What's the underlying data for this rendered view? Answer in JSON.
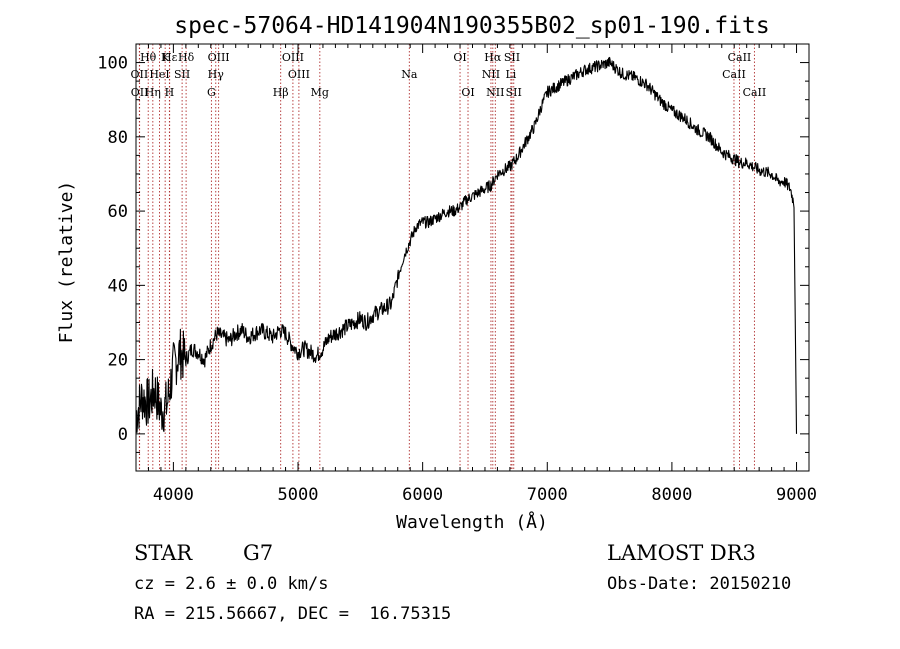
{
  "chart_data": {
    "type": "line",
    "title": "spec-57064-HD141904N190355B02_sp01-190.fits",
    "xlabel": "Wavelength (Å)",
    "ylabel": "Flux (relative)",
    "xlim": [
      3700,
      9100
    ],
    "ylim": [
      -10,
      105
    ],
    "xticks": [
      4000,
      5000,
      6000,
      7000,
      8000,
      9000
    ],
    "yticks": [
      0,
      20,
      40,
      60,
      80,
      100
    ],
    "grid": false,
    "series": [
      {
        "name": "flux",
        "x": [
          3700,
          3750,
          3800,
          3850,
          3900,
          3950,
          4000,
          4050,
          4100,
          4150,
          4200,
          4250,
          4300,
          4350,
          4400,
          4450,
          4500,
          4550,
          4600,
          4650,
          4700,
          4750,
          4800,
          4850,
          4900,
          4950,
          5000,
          5050,
          5100,
          5150,
          5200,
          5250,
          5300,
          5350,
          5400,
          5450,
          5500,
          5550,
          5600,
          5650,
          5700,
          5750,
          5800,
          5850,
          5900,
          5950,
          6000,
          6050,
          6100,
          6150,
          6200,
          6250,
          6300,
          6350,
          6400,
          6450,
          6500,
          6550,
          6600,
          6650,
          6700,
          6750,
          6800,
          6850,
          6900,
          6950,
          7000,
          7100,
          7200,
          7300,
          7400,
          7500,
          7600,
          7700,
          7800,
          7900,
          8000,
          8100,
          8200,
          8300,
          8400,
          8450,
          8500,
          8550,
          8600,
          8650,
          8700,
          8800,
          8850,
          8900,
          8950,
          8980,
          9000
        ],
        "values": [
          5,
          10,
          8,
          12,
          6,
          8,
          18,
          22,
          20,
          23,
          22,
          20,
          24,
          27,
          26,
          25,
          27,
          28,
          26,
          27,
          28,
          27,
          26,
          28,
          27,
          24,
          22,
          23,
          22,
          21,
          23,
          26,
          27,
          28,
          29,
          30,
          31,
          30,
          32,
          33,
          34,
          35,
          42,
          48,
          52,
          56,
          57,
          57,
          58,
          59,
          60,
          60,
          61,
          63,
          64,
          65,
          66,
          67,
          70,
          71,
          72,
          74,
          77,
          80,
          83,
          88,
          92,
          94,
          96,
          98,
          99,
          100,
          97,
          96,
          94,
          90,
          87,
          85,
          82,
          80,
          76,
          75,
          74,
          73,
          73,
          72,
          71,
          70,
          68,
          68,
          66,
          62,
          0
        ]
      }
    ],
    "line_markers": [
      {
        "label": "Hθ",
        "wavelength": 3798,
        "row": 0
      },
      {
        "label": "Hε",
        "wavelength": 3970,
        "row": 0
      },
      {
        "label": "K",
        "wavelength": 3934,
        "row": 0
      },
      {
        "label": "Hδ",
        "wavelength": 4102,
        "row": 0
      },
      {
        "label": "OIII",
        "wavelength": 4363,
        "row": 0
      },
      {
        "label": "OIII",
        "wavelength": 4959,
        "row": 0
      },
      {
        "label": "OI",
        "wavelength": 6300,
        "row": 0
      },
      {
        "label": "Hα",
        "wavelength": 6563,
        "row": 0
      },
      {
        "label": "SII",
        "wavelength": 6717,
        "row": 0
      },
      {
        "label": "CaII",
        "wavelength": 8542,
        "row": 0
      },
      {
        "label": "OII",
        "wavelength": 3727,
        "row": 1
      },
      {
        "label": "HeI",
        "wavelength": 3889,
        "row": 1
      },
      {
        "label": "SII",
        "wavelength": 4070,
        "row": 1
      },
      {
        "label": "Hγ",
        "wavelength": 4340,
        "row": 1
      },
      {
        "label": "OIII",
        "wavelength": 5007,
        "row": 1
      },
      {
        "label": "Na",
        "wavelength": 5893,
        "row": 1
      },
      {
        "label": "NII",
        "wavelength": 6548,
        "row": 1
      },
      {
        "label": "Li",
        "wavelength": 6708,
        "row": 1
      },
      {
        "label": "CaII",
        "wavelength": 8498,
        "row": 1
      },
      {
        "label": "OII",
        "wavelength": 3729,
        "row": 2
      },
      {
        "label": "Hη",
        "wavelength": 3835,
        "row": 2
      },
      {
        "label": "H",
        "wavelength": 3968,
        "row": 2
      },
      {
        "label": "G",
        "wavelength": 4305,
        "row": 2
      },
      {
        "label": "Hβ",
        "wavelength": 4861,
        "row": 2
      },
      {
        "label": "Mg",
        "wavelength": 5175,
        "row": 2
      },
      {
        "label": "OI",
        "wavelength": 6364,
        "row": 2
      },
      {
        "label": "NII",
        "wavelength": 6583,
        "row": 2
      },
      {
        "label": "SII",
        "wavelength": 6731,
        "row": 2
      },
      {
        "label": "CaII",
        "wavelength": 8662,
        "row": 2
      }
    ]
  },
  "info": {
    "object_class": "STAR",
    "subclass": "G7",
    "survey": "LAMOST DR3",
    "redshift": "cz = 2.6 ± 0.0 km/s",
    "obs_date": "Obs-Date: 20150210",
    "coords": "RA = 215.56667, DEC =  16.75315"
  }
}
